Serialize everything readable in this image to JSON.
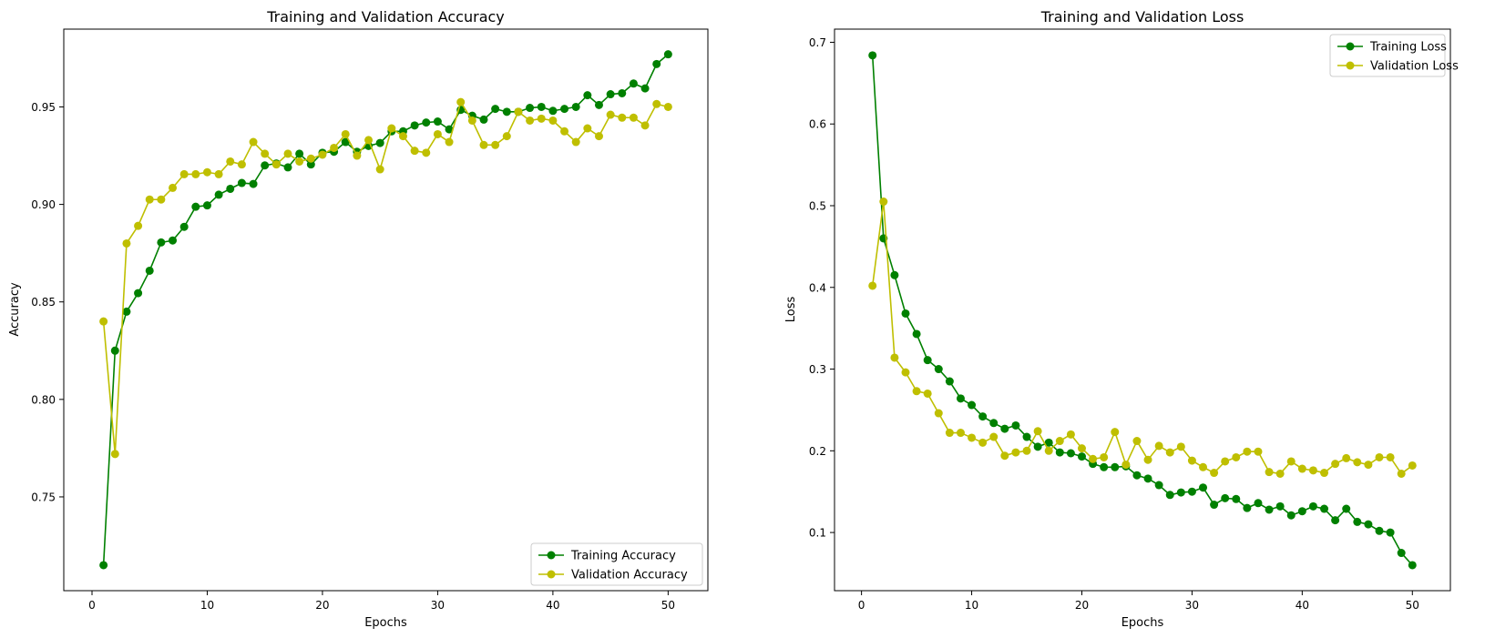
{
  "colors": {
    "train": "#008000",
    "val": "#BFBF00"
  },
  "chart_data": [
    {
      "type": "line",
      "title": "Training and Validation Accuracy",
      "xlabel": "Epochs",
      "ylabel": "Accuracy",
      "xlim": [
        -2.45,
        53.45
      ],
      "ylim": [
        0.7019,
        0.9899
      ],
      "xticks": [
        0,
        10,
        20,
        30,
        40,
        50
      ],
      "xtick_labels": [
        "0",
        "10",
        "20",
        "30",
        "40",
        "50"
      ],
      "yticks": [
        0.75,
        0.8,
        0.85,
        0.9,
        0.95
      ],
      "ytick_labels": [
        "0.75",
        "0.80",
        "0.85",
        "0.90",
        "0.95"
      ],
      "legend_position": "lower-right",
      "x": [
        1,
        2,
        3,
        4,
        5,
        6,
        7,
        8,
        9,
        10,
        11,
        12,
        13,
        14,
        15,
        16,
        17,
        18,
        19,
        20,
        21,
        22,
        23,
        24,
        25,
        26,
        27,
        28,
        29,
        30,
        31,
        32,
        33,
        34,
        35,
        36,
        37,
        38,
        39,
        40,
        41,
        42,
        43,
        44,
        45,
        46,
        47,
        48,
        49,
        50
      ],
      "series": [
        {
          "name": "Training Accuracy",
          "color": "#008000",
          "values": [
            0.715,
            0.825,
            0.845,
            0.8545,
            0.866,
            0.8805,
            0.8815,
            0.8885,
            0.8988,
            0.8995,
            0.905,
            0.908,
            0.911,
            0.9105,
            0.92,
            0.921,
            0.919,
            0.926,
            0.9205,
            0.9265,
            0.927,
            0.932,
            0.927,
            0.93,
            0.9315,
            0.9375,
            0.9375,
            0.9405,
            0.942,
            0.9425,
            0.9385,
            0.9485,
            0.9455,
            0.9435,
            0.949,
            0.9475,
            0.9475,
            0.9495,
            0.95,
            0.948,
            0.949,
            0.95,
            0.956,
            0.951,
            0.9565,
            0.957,
            0.962,
            0.9595,
            0.972,
            0.977
          ]
        },
        {
          "name": "Validation Accuracy",
          "color": "#BFBF00",
          "values": [
            0.84,
            0.772,
            0.88,
            0.889,
            0.9025,
            0.9025,
            0.9085,
            0.9155,
            0.9155,
            0.9165,
            0.9155,
            0.922,
            0.9205,
            0.932,
            0.926,
            0.9205,
            0.926,
            0.922,
            0.9235,
            0.9255,
            0.929,
            0.936,
            0.925,
            0.933,
            0.918,
            0.939,
            0.935,
            0.9275,
            0.9265,
            0.936,
            0.932,
            0.9525,
            0.943,
            0.9305,
            0.9305,
            0.935,
            0.9475,
            0.943,
            0.944,
            0.943,
            0.9375,
            0.932,
            0.939,
            0.935,
            0.946,
            0.9445,
            0.9445,
            0.9405,
            0.9515,
            0.95
          ]
        }
      ]
    },
    {
      "type": "line",
      "title": "Training and Validation Loss",
      "xlabel": "Epochs",
      "ylabel": "Loss",
      "xlim": [
        -2.45,
        53.45
      ],
      "ylim": [
        0.0288,
        0.7161
      ],
      "xticks": [
        0,
        10,
        20,
        30,
        40,
        50
      ],
      "xtick_labels": [
        "0",
        "10",
        "20",
        "30",
        "40",
        "50"
      ],
      "yticks": [
        0.1,
        0.2,
        0.3,
        0.4,
        0.5,
        0.6,
        0.7
      ],
      "ytick_labels": [
        "0.1",
        "0.2",
        "0.3",
        "0.4",
        "0.5",
        "0.6",
        "0.7"
      ],
      "legend_position": "upper-right",
      "x": [
        1,
        2,
        3,
        4,
        5,
        6,
        7,
        8,
        9,
        10,
        11,
        12,
        13,
        14,
        15,
        16,
        17,
        18,
        19,
        20,
        21,
        22,
        23,
        24,
        25,
        26,
        27,
        28,
        29,
        30,
        31,
        32,
        33,
        34,
        35,
        36,
        37,
        38,
        39,
        40,
        41,
        42,
        43,
        44,
        45,
        46,
        47,
        48,
        49,
        50
      ],
      "series": [
        {
          "name": "Training Loss",
          "color": "#008000",
          "values": [
            0.684,
            0.46,
            0.415,
            0.368,
            0.343,
            0.311,
            0.3,
            0.285,
            0.264,
            0.256,
            0.242,
            0.234,
            0.227,
            0.231,
            0.217,
            0.205,
            0.21,
            0.198,
            0.197,
            0.193,
            0.184,
            0.18,
            0.18,
            0.181,
            0.17,
            0.166,
            0.158,
            0.146,
            0.149,
            0.15,
            0.155,
            0.134,
            0.142,
            0.141,
            0.13,
            0.136,
            0.128,
            0.132,
            0.121,
            0.126,
            0.132,
            0.129,
            0.115,
            0.129,
            0.113,
            0.11,
            0.102,
            0.1,
            0.075,
            0.06
          ]
        },
        {
          "name": "Validation Loss",
          "color": "#BFBF00",
          "values": [
            0.402,
            0.505,
            0.314,
            0.296,
            0.273,
            0.27,
            0.246,
            0.222,
            0.222,
            0.216,
            0.21,
            0.217,
            0.194,
            0.198,
            0.2,
            0.224,
            0.2,
            0.212,
            0.22,
            0.203,
            0.19,
            0.192,
            0.223,
            0.183,
            0.212,
            0.189,
            0.206,
            0.198,
            0.205,
            0.188,
            0.18,
            0.173,
            0.187,
            0.192,
            0.199,
            0.199,
            0.174,
            0.172,
            0.187,
            0.178,
            0.176,
            0.173,
            0.184,
            0.191,
            0.186,
            0.183,
            0.192,
            0.192,
            0.172,
            0.182
          ]
        }
      ]
    }
  ]
}
